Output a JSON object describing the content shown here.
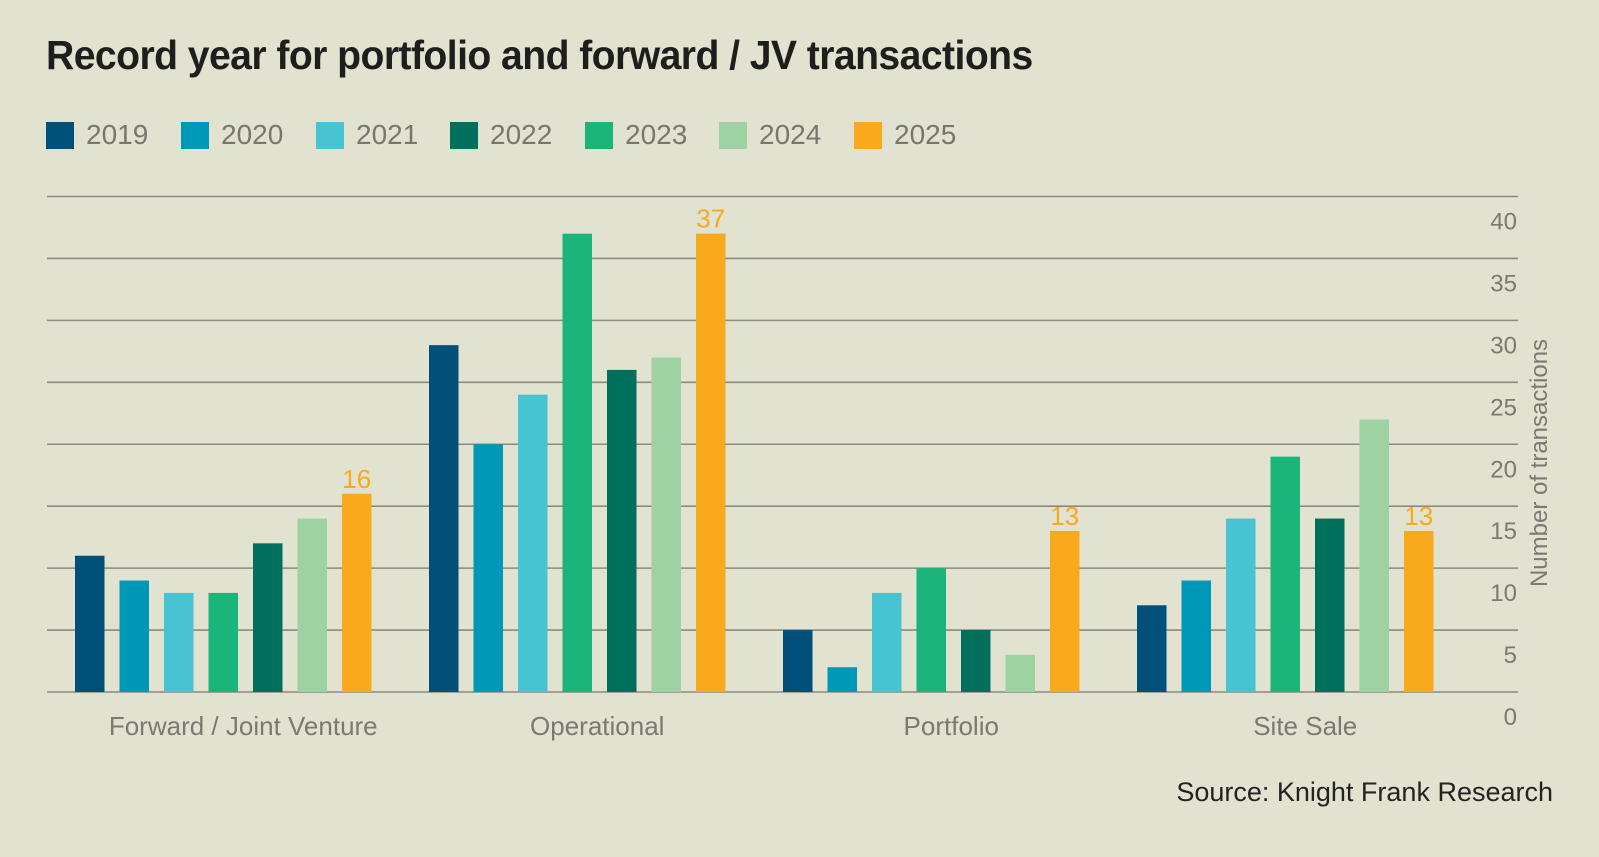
{
  "chart_data": {
    "type": "bar",
    "title": "Record year for portfolio and forward / JV transactions",
    "categories": [
      "Forward / Joint Venture",
      "Operational",
      "Portfolio",
      "Site Sale"
    ],
    "series": [
      {
        "name": "2019",
        "color": "#00507A",
        "values": [
          11,
          28,
          5,
          7
        ]
      },
      {
        "name": "2020",
        "color": "#0098B8",
        "values": [
          9,
          20,
          2,
          9
        ]
      },
      {
        "name": "2021",
        "color": "#47C3D2",
        "values": [
          8,
          24,
          8,
          14
        ]
      },
      {
        "name": "2023",
        "color": "#1BB57C",
        "values": [
          8,
          37,
          10,
          19
        ]
      },
      {
        "name": "2022",
        "color": "#006F5B",
        "values": [
          12,
          26,
          5,
          14
        ]
      },
      {
        "name": "2024",
        "color": "#9DD3A2",
        "values": [
          14,
          27,
          3,
          22
        ]
      },
      {
        "name": "2025",
        "color": "#F9A91C",
        "values": [
          16,
          37,
          13,
          13
        ],
        "show_labels": true
      }
    ],
    "legend": [
      {
        "name": "2019",
        "color": "#00507A"
      },
      {
        "name": "2020",
        "color": "#0098B8"
      },
      {
        "name": "2021",
        "color": "#47C3D2"
      },
      {
        "name": "2022",
        "color": "#006F5B"
      },
      {
        "name": "2023",
        "color": "#1BB57C"
      },
      {
        "name": "2024",
        "color": "#9DD3A2"
      },
      {
        "name": "2025",
        "color": "#F9A91C"
      }
    ],
    "legend_position": "top-left",
    "xlabel": "",
    "ylabel": "Number of transactions",
    "y_axis_side": "right",
    "ylim": [
      0,
      40
    ],
    "yticks": [
      0,
      5,
      10,
      15,
      20,
      25,
      30,
      35,
      40
    ],
    "grid": true,
    "source": "Source: Knight Frank Research"
  }
}
